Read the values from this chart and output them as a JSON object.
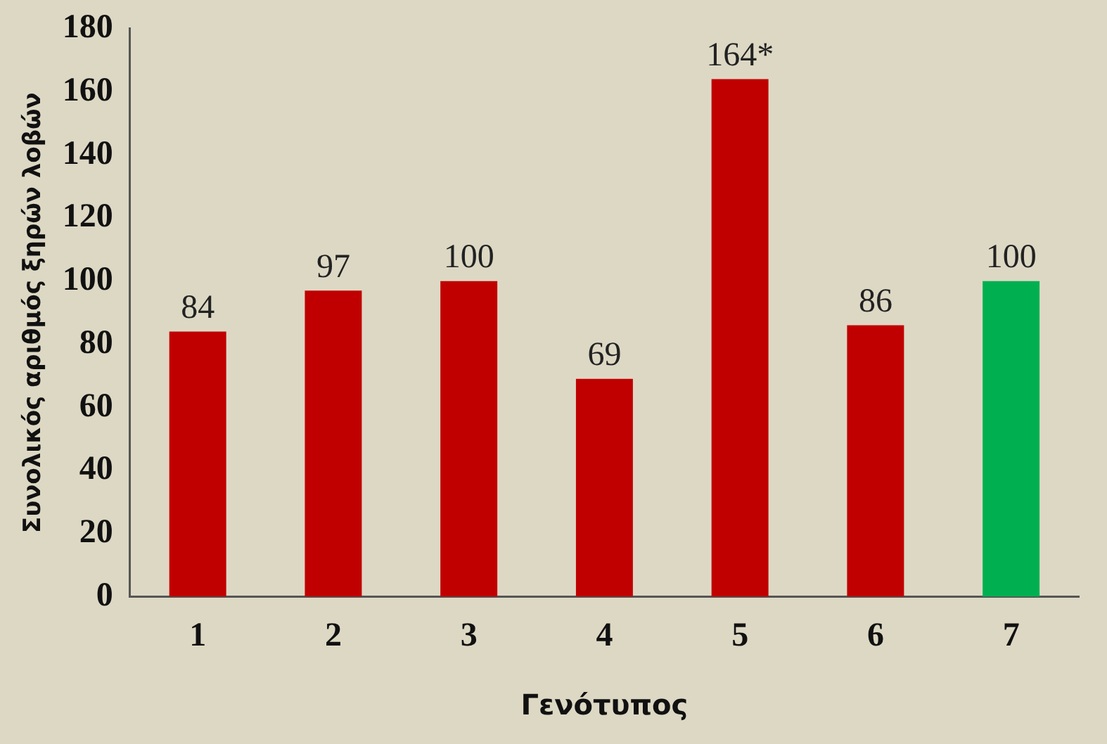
{
  "chart_data": {
    "type": "bar",
    "xlabel": "Γενότυπος",
    "ylabel": "Συνολικός αριθμός ξηρών λοβών",
    "categories": [
      "1",
      "2",
      "3",
      "4",
      "5",
      "6",
      "7"
    ],
    "values": [
      84,
      97,
      100,
      69,
      164,
      86,
      100
    ],
    "colors": [
      "#c00000",
      "#c00000",
      "#c00000",
      "#c00000",
      "#c00000",
      "#c00000",
      "#00b050"
    ],
    "value_labels": [
      "84",
      "97",
      "100",
      "69",
      "164*",
      "86",
      "100"
    ],
    "ylim": [
      0,
      180
    ],
    "yticks": [
      0,
      20,
      40,
      60,
      80,
      100,
      120,
      140,
      160,
      180
    ],
    "grid": false,
    "legend": false
  }
}
